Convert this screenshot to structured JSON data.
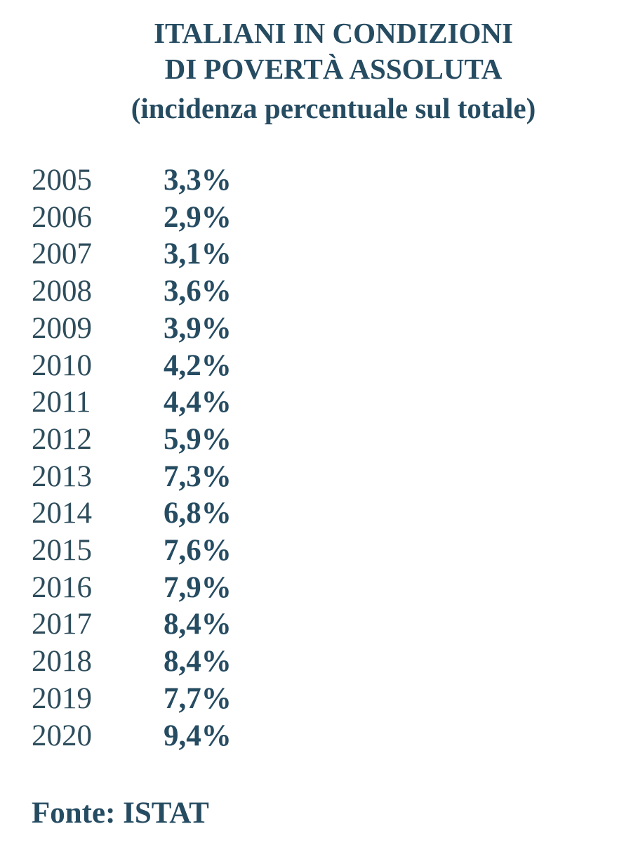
{
  "header": {
    "title_lines": [
      "ITALIANI IN CONDIZIONI",
      "DI POVERTÀ ASSOLUTA",
      "(incidenza percentuale sul totale)"
    ]
  },
  "table": {
    "rows": [
      [
        "2005",
        "3,3%"
      ],
      [
        "2006",
        "2,9%"
      ],
      [
        "2007",
        "3,1%"
      ],
      [
        "2008",
        "3,6%"
      ],
      [
        "2009",
        "3,9%"
      ],
      [
        "2010",
        "4,2%"
      ],
      [
        "2011",
        "4,4%"
      ],
      [
        "2012",
        "5,9%"
      ],
      [
        "2013",
        "7,3%"
      ],
      [
        "2014",
        "6,8%"
      ],
      [
        "2015",
        "7,6%"
      ],
      [
        "2016",
        "7,9%"
      ],
      [
        "2017",
        "8,4%"
      ],
      [
        "2018",
        "8,4%"
      ],
      [
        "2019",
        "7,7%"
      ],
      [
        "2020",
        "9,4%"
      ]
    ]
  },
  "footer": {
    "source": "Fonte: ISTAT"
  }
}
